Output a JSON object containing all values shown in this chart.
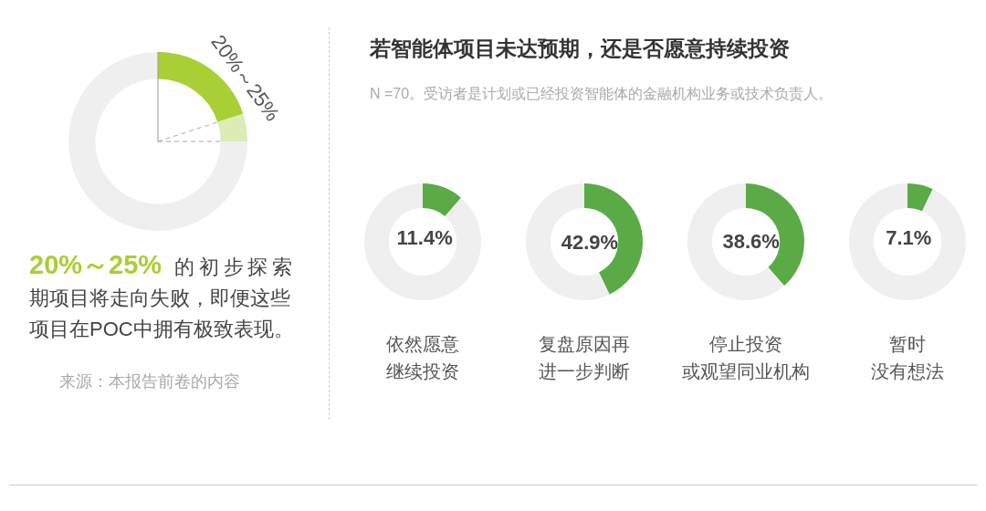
{
  "chart_data": [
    {
      "type": "donut",
      "categories": [
        null,
        null,
        null
      ],
      "values": [
        20,
        5,
        75
      ],
      "colors": [
        "#a8cf34",
        "#dcecb4",
        "#efefef"
      ],
      "annotations": [
        "20%～25%",
        "20%～25% 的初步探索期项目将走向失败，即便这些项目在POC中拥有极致表现。",
        "来源：本报告前卷的内容"
      ]
    },
    {
      "type": "other",
      "title": "若智能体项目未达预期，还是否愿意持续投资",
      "subtitle": "N =70。受访者是计划或已经投资智能体的金融机构业务或技术负责人。"
    },
    {
      "type": "donut",
      "title": "依然愿意继续投资",
      "categories": [
        null,
        null
      ],
      "values": [
        11.4,
        88.6
      ],
      "colors": [
        "#5aab45",
        "#efefef"
      ],
      "value_labels": [
        "11.4%",
        null
      ]
    },
    {
      "type": "donut",
      "title": "复盘原因再进一步判断",
      "categories": [
        null,
        null
      ],
      "values": [
        42.9,
        57.1
      ],
      "colors": [
        "#5aab45",
        "#efefef"
      ],
      "value_labels": [
        "42.9%",
        null
      ]
    },
    {
      "type": "donut",
      "title": "停止投资或观望同业机构",
      "categories": [
        null,
        null
      ],
      "values": [
        38.6,
        61.4
      ],
      "colors": [
        "#5aab45",
        "#efefef"
      ],
      "value_labels": [
        "38.6%",
        null
      ]
    },
    {
      "type": "donut",
      "title": "暂时没有想法",
      "categories": [
        null,
        null
      ],
      "values": [
        7.1,
        92.9
      ],
      "colors": [
        "#5aab45",
        "#efefef"
      ],
      "value_labels": [
        "7.1%",
        null
      ]
    }
  ]
}
